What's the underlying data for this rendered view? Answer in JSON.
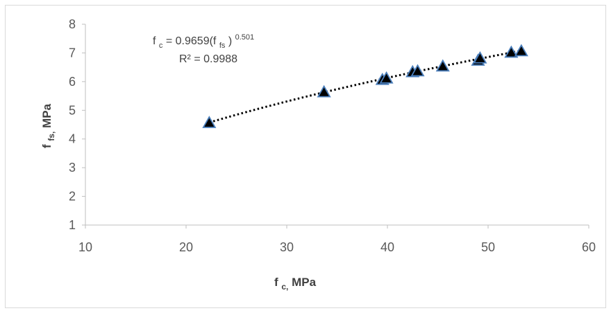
{
  "chart_data": {
    "type": "scatter",
    "title": "",
    "xlabel": {
      "main": "f",
      "sub": "c,",
      "tail": " MPa"
    },
    "ylabel": {
      "main": "f",
      "sub": "fs,",
      "tail": " MPa"
    },
    "xlim": [
      10,
      60
    ],
    "ylim": [
      1,
      8
    ],
    "xticks": [
      10,
      20,
      30,
      40,
      50,
      60
    ],
    "yticks": [
      1,
      2,
      3,
      4,
      5,
      6,
      7,
      8
    ],
    "grid": false,
    "legend": "none",
    "marker": "triangle",
    "marker_fill": "#000000",
    "marker_edge": "#4a7ebb",
    "trendline": {
      "style": "dotted",
      "color": "#000000",
      "coefficient": 0.9659,
      "exponent": 0.501
    },
    "annotation": {
      "line1_prefix": "f",
      "line1_sub1": "c",
      "line1_mid": " = 0.9659(f",
      "line1_sub2": "fs",
      "line1_close": ")",
      "line1_sup": "0.501",
      "line2": "R² = 0.9988"
    },
    "series": [
      {
        "x": [
          22.3,
          33.7,
          39.5,
          39.9,
          42.5,
          43.0,
          45.5,
          49.0,
          49.2,
          52.3,
          53.3
        ],
        "y": [
          4.55,
          5.62,
          6.05,
          6.1,
          6.32,
          6.35,
          6.52,
          6.72,
          6.8,
          7.0,
          7.05
        ]
      }
    ]
  },
  "colors": {
    "axis": "#bfbfbf",
    "text": "#595959",
    "label": "#404040"
  }
}
